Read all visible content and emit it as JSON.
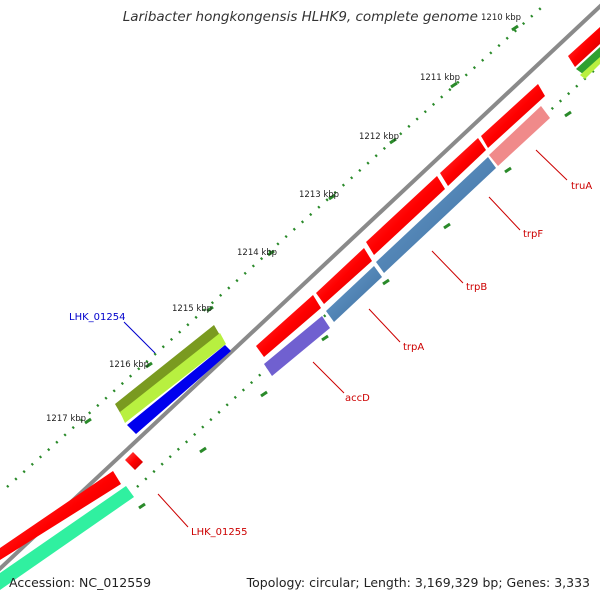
{
  "map": {
    "title": "Laribacter hongkongensis HLHK9, complete genome",
    "accession_label": "Accession: NC_012559",
    "summary_label": "Topology: circular; Length: 3,169,329 bp; Genes: 3,333",
    "ticks": [
      "1210 kbp",
      "1211 kbp",
      "1212 kbp",
      "1213 kbp",
      "1214 kbp",
      "1215 kbp",
      "1216 kbp",
      "1217 kbp"
    ],
    "gene_labels": [
      {
        "name": "truA",
        "color": "#cc0000"
      },
      {
        "name": "trpF",
        "color": "#cc0000"
      },
      {
        "name": "trpB",
        "color": "#cc0000"
      },
      {
        "name": "trpA",
        "color": "#cc0000"
      },
      {
        "name": "accD",
        "color": "#cc0000"
      },
      {
        "name": "LHK_01254",
        "color": "#0000cc"
      },
      {
        "name": "LHK_01255",
        "color": "#cc0000"
      }
    ],
    "colors": {
      "backbone": "#8a8a8a",
      "cds": "#ff0000",
      "cds_light": "#f08a8a",
      "trp_operon": "#4a7fb0",
      "acc": "#7060d0",
      "blue_gene": "#0000ee",
      "olive_gene": "#7a9a20",
      "lime_gene": "#b8f040",
      "teal_gene": "#30f0a0",
      "tick": "#2a8a2a"
    }
  }
}
